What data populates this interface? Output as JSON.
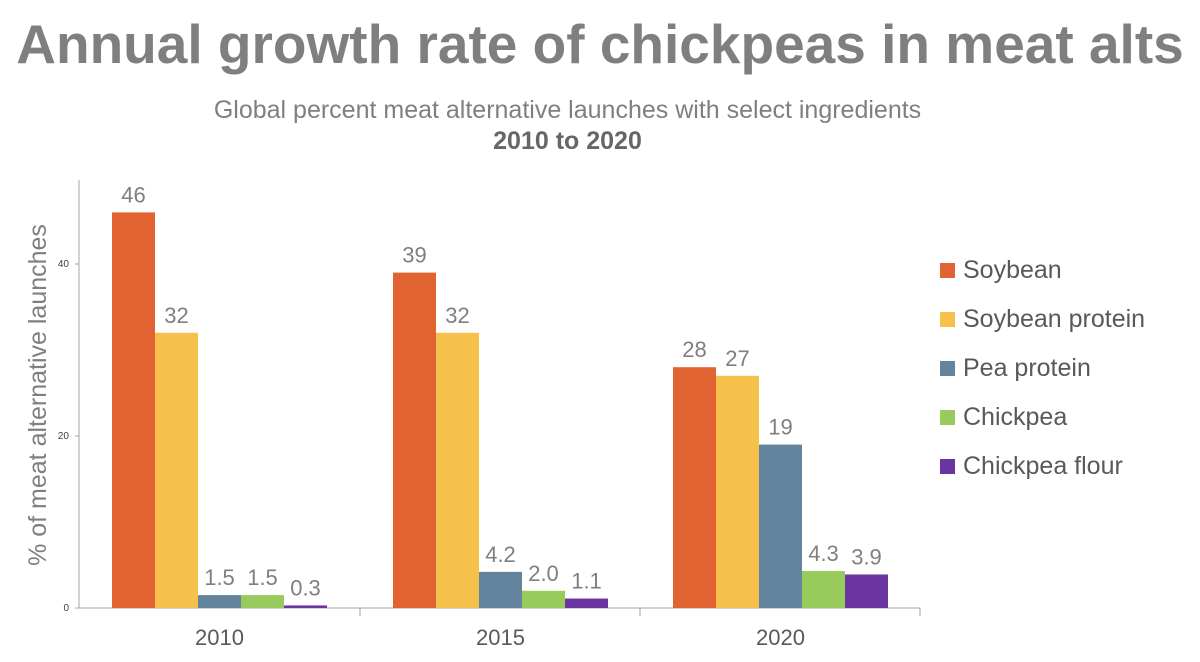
{
  "chart_data": {
    "type": "bar",
    "title": "Annual growth rate of chickpeas in meat alts",
    "subtitle": "Global percent meat alternative launches with select ingredients",
    "subtitle2": "2010 to 2020",
    "xlabel": "",
    "ylabel": "% of meat alternative launches",
    "ylim": [
      0,
      50
    ],
    "yticks": [
      0,
      20,
      40
    ],
    "categories": [
      "2010",
      "2015",
      "2020"
    ],
    "series": [
      {
        "name": "Soybean",
        "color": "#e06331",
        "values": [
          46,
          39,
          28
        ],
        "labels": [
          "46",
          "39",
          "28"
        ]
      },
      {
        "name": "Soybean protein",
        "color": "#f6c14b",
        "values": [
          32,
          32,
          27
        ],
        "labels": [
          "32",
          "32",
          "27"
        ]
      },
      {
        "name": "Pea protein",
        "color": "#63849c",
        "values": [
          1.5,
          4.2,
          19
        ],
        "labels": [
          "1.5",
          "4.2",
          "19"
        ]
      },
      {
        "name": "Chickpea",
        "color": "#98cb5c",
        "values": [
          1.5,
          2.0,
          4.3
        ],
        "labels": [
          "1.5",
          "2.0",
          "4.3"
        ]
      },
      {
        "name": "Chickpea flour",
        "color": "#6a35a0",
        "values": [
          0.3,
          1.1,
          3.9
        ],
        "labels": [
          "0.3",
          "1.1",
          "3.9"
        ]
      }
    ],
    "grid": false,
    "legend_position": "right"
  }
}
